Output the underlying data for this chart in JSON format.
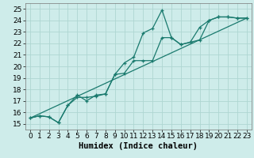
{
  "xlabel": "Humidex (Indice chaleur)",
  "xlim": [
    -0.5,
    23.5
  ],
  "ylim": [
    14.5,
    25.5
  ],
  "xticks": [
    0,
    1,
    2,
    3,
    4,
    5,
    6,
    7,
    8,
    9,
    10,
    11,
    12,
    13,
    14,
    15,
    16,
    17,
    18,
    19,
    20,
    21,
    22,
    23
  ],
  "yticks": [
    15,
    16,
    17,
    18,
    19,
    20,
    21,
    22,
    23,
    24,
    25
  ],
  "bg_color": "#ceecea",
  "grid_color": "#aed6d2",
  "line_color": "#1a7a6e",
  "line1_x": [
    0,
    1,
    2,
    3,
    4,
    5,
    6,
    7,
    8,
    9,
    10,
    11,
    12,
    13,
    14,
    15,
    16,
    17,
    18,
    19,
    20,
    21,
    22,
    23
  ],
  "line1_y": [
    15.5,
    15.7,
    15.6,
    15.1,
    16.6,
    17.5,
    17.0,
    17.5,
    17.6,
    19.3,
    20.3,
    20.8,
    22.9,
    23.3,
    24.9,
    22.5,
    21.9,
    22.1,
    23.4,
    24.0,
    24.3,
    24.3,
    24.2,
    24.2
  ],
  "line2_x": [
    0,
    1,
    2,
    3,
    4,
    5,
    6,
    7,
    8,
    9,
    10,
    11,
    12,
    13,
    14,
    15,
    16,
    17,
    18,
    19,
    20,
    21,
    22,
    23
  ],
  "line2_y": [
    15.5,
    15.7,
    15.6,
    15.1,
    16.6,
    17.3,
    17.3,
    17.4,
    17.6,
    19.3,
    19.4,
    20.5,
    20.5,
    20.5,
    22.5,
    22.5,
    21.9,
    22.1,
    22.3,
    24.0,
    24.3,
    24.3,
    24.2,
    24.2
  ],
  "line3_x": [
    0,
    23
  ],
  "line3_y": [
    15.5,
    24.2
  ],
  "font_size_ticks": 6.5,
  "font_size_xlabel": 7.5
}
